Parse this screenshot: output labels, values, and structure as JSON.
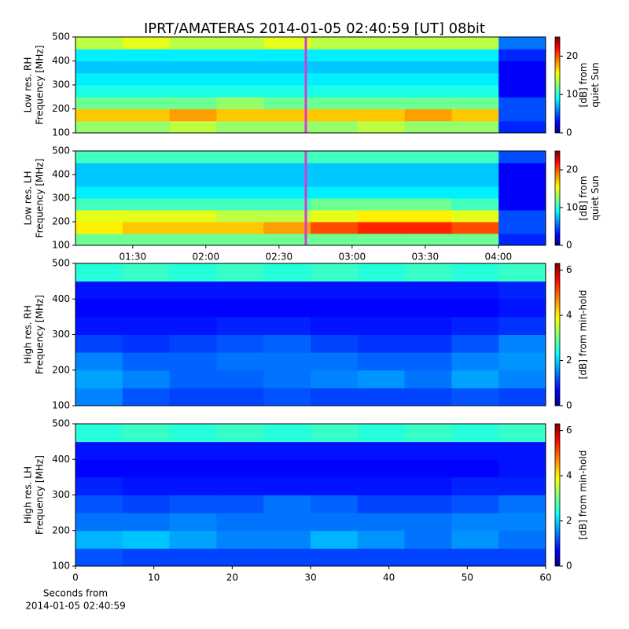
{
  "title": "IPRT/AMATERAS 2014-01-05 02:40:59 [UT]   08bit",
  "chart_data": [
    {
      "type": "heatmap",
      "ylabel": [
        "Low res. RH",
        "Frequency [MHz]"
      ],
      "colorbar_label": [
        "[dB] from",
        "quiet Sun"
      ],
      "xlim": [
        66.5,
        259.4
      ],
      "ylim": [
        100,
        500
      ],
      "yticks": [
        100,
        200,
        300,
        400,
        500
      ],
      "zlim": [
        0,
        25
      ],
      "zticks": [
        0,
        10,
        20
      ],
      "colormap": "jet",
      "cursor": 161,
      "cursor_color": "#d040d0",
      "z": [
        [
          13,
          13,
          14,
          13,
          13,
          13,
          14,
          13,
          13,
          4
        ],
        [
          17,
          17,
          18,
          17,
          17,
          17,
          17,
          18,
          17,
          5
        ],
        [
          12,
          12,
          12,
          13,
          12,
          12,
          12,
          12,
          12,
          5
        ],
        [
          10,
          10,
          10,
          10,
          10,
          10,
          10,
          10,
          10,
          3
        ],
        [
          9,
          9,
          9,
          9,
          9,
          9,
          9,
          9,
          9,
          3
        ],
        [
          8,
          8,
          8,
          8,
          8,
          8,
          8,
          8,
          8,
          3
        ],
        [
          9,
          9,
          9,
          9,
          9,
          9,
          9,
          9,
          9,
          4
        ],
        [
          14,
          15,
          14,
          14,
          15,
          14,
          14,
          14,
          14,
          6
        ]
      ]
    },
    {
      "type": "heatmap",
      "ylabel": [
        "Low res. LH",
        "Frequency [MHz]"
      ],
      "colorbar_label": [
        "[dB] from",
        "quiet Sun"
      ],
      "xlim": [
        66.5,
        259.4
      ],
      "ylim": [
        100,
        500
      ],
      "yticks": [
        100,
        200,
        300,
        400,
        500
      ],
      "xticks": [
        {
          "value": 90,
          "label": "01:30"
        },
        {
          "value": 120,
          "label": "02:00"
        },
        {
          "value": 150,
          "label": "02:30"
        },
        {
          "value": 180,
          "label": "03:00"
        },
        {
          "value": 210,
          "label": "03:30"
        },
        {
          "value": 240,
          "label": "04:00"
        }
      ],
      "zlim": [
        0,
        25
      ],
      "zticks": [
        0,
        10,
        20
      ],
      "colormap": "jet",
      "cursor": 161,
      "cursor_color": "#d040d0",
      "z": [
        [
          12,
          12,
          12,
          12,
          12,
          12,
          12,
          12,
          12,
          4
        ],
        [
          16,
          17,
          17,
          17,
          18,
          20,
          21,
          21,
          20,
          5
        ],
        [
          15,
          15,
          15,
          14,
          14,
          15,
          16,
          16,
          15,
          5
        ],
        [
          11,
          11,
          11,
          11,
          11,
          12,
          12,
          12,
          11,
          3
        ],
        [
          9,
          9,
          9,
          9,
          9,
          9,
          9,
          9,
          9,
          3
        ],
        [
          8,
          8,
          8,
          8,
          8,
          8,
          8,
          8,
          8,
          3
        ],
        [
          8,
          8,
          8,
          8,
          8,
          8,
          8,
          8,
          8,
          3
        ],
        [
          11,
          11,
          11,
          11,
          11,
          11,
          11,
          11,
          11,
          5
        ]
      ]
    },
    {
      "type": "heatmap",
      "ylabel": [
        "High res. RH",
        "Frequency [MHz]"
      ],
      "colorbar_label": [
        "[dB] from min-hold"
      ],
      "xlim": [
        0,
        60
      ],
      "ylim": [
        100,
        500
      ],
      "yticks": [
        100,
        200,
        300,
        400,
        500
      ],
      "zlim": [
        0,
        6.3
      ],
      "zticks": [
        0,
        2,
        4,
        6
      ],
      "colormap": "jet",
      "z": [
        [
          1.6,
          1.3,
          1.2,
          1.2,
          1.3,
          1.2,
          1.2,
          1.2,
          1.3,
          1.2
        ],
        [
          1.8,
          1.6,
          1.4,
          1.4,
          1.5,
          1.6,
          1.7,
          1.5,
          1.8,
          1.6
        ],
        [
          1.6,
          1.4,
          1.4,
          1.5,
          1.5,
          1.5,
          1.4,
          1.4,
          1.6,
          1.7
        ],
        [
          1.2,
          1.1,
          1.2,
          1.3,
          1.4,
          1.2,
          1.1,
          1.1,
          1.3,
          1.6
        ],
        [
          0.9,
          0.9,
          0.9,
          1.0,
          1.0,
          0.9,
          0.9,
          0.9,
          1.0,
          1.1
        ],
        [
          0.8,
          0.8,
          0.8,
          0.8,
          0.8,
          0.8,
          0.8,
          0.8,
          0.8,
          0.9
        ],
        [
          0.9,
          0.9,
          0.9,
          0.9,
          0.9,
          0.9,
          0.9,
          0.9,
          0.9,
          1.0
        ],
        [
          2.6,
          2.7,
          2.6,
          2.7,
          2.6,
          2.7,
          2.6,
          2.7,
          2.6,
          2.7
        ]
      ]
    },
    {
      "type": "heatmap",
      "ylabel": [
        "High res. LH",
        "Frequency [MHz]"
      ],
      "colorbar_label": [
        "[dB] from min-hold"
      ],
      "xlim": [
        0,
        60
      ],
      "ylim": [
        100,
        500
      ],
      "yticks": [
        100,
        200,
        300,
        400,
        500
      ],
      "xticks": [
        0,
        10,
        20,
        30,
        40,
        50,
        60
      ],
      "xlabel": [
        "Seconds from",
        "2014-01-05 02:40:59"
      ],
      "zlim": [
        0,
        6.3
      ],
      "zticks": [
        0,
        2,
        4,
        6
      ],
      "colormap": "jet",
      "z": [
        [
          1.3,
          1.2,
          1.2,
          1.2,
          1.2,
          1.2,
          1.2,
          1.2,
          1.2,
          1.2
        ],
        [
          1.9,
          2.0,
          1.8,
          1.6,
          1.6,
          1.9,
          1.7,
          1.5,
          1.7,
          1.5
        ],
        [
          1.5,
          1.5,
          1.6,
          1.5,
          1.5,
          1.5,
          1.5,
          1.5,
          1.6,
          1.6
        ],
        [
          1.3,
          1.2,
          1.3,
          1.3,
          1.5,
          1.4,
          1.2,
          1.2,
          1.3,
          1.5
        ],
        [
          1.0,
          0.9,
          0.9,
          0.9,
          0.9,
          0.9,
          0.9,
          0.9,
          1.0,
          1.0
        ],
        [
          0.8,
          0.8,
          0.8,
          0.8,
          0.8,
          0.8,
          0.8,
          0.8,
          0.8,
          0.9
        ],
        [
          0.9,
          0.9,
          0.9,
          0.9,
          0.9,
          0.9,
          0.9,
          0.9,
          0.9,
          0.9
        ],
        [
          2.6,
          2.7,
          2.6,
          2.7,
          2.6,
          2.7,
          2.6,
          2.7,
          2.6,
          2.7
        ]
      ]
    }
  ]
}
